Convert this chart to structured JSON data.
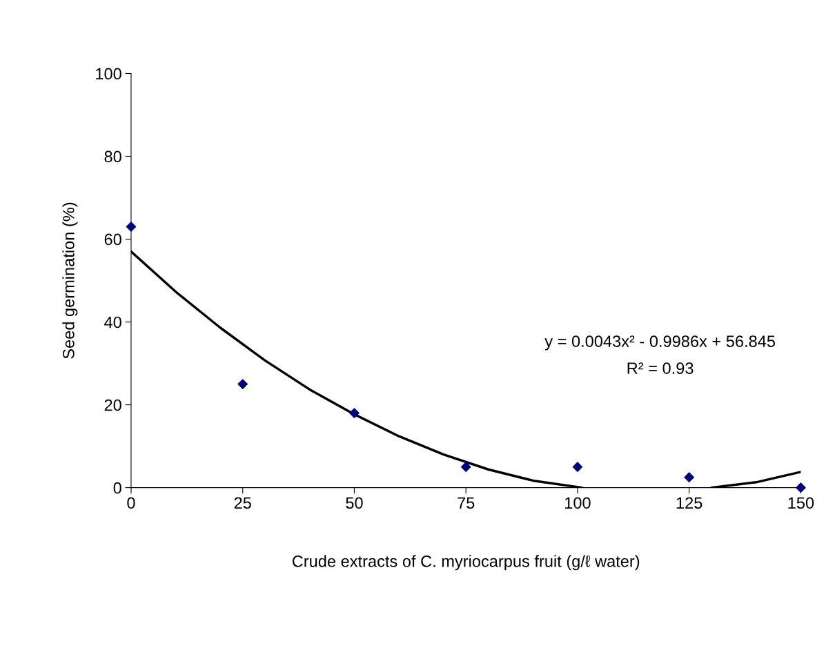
{
  "chart_data": {
    "type": "scatter",
    "xlabel": "Crude extracts of C. myriocarpus fruit (g/ℓ water)",
    "ylabel": "Seed germination (%)",
    "x": [
      0,
      25,
      50,
      75,
      100,
      125,
      150
    ],
    "series": [
      {
        "color": "#000080",
        "marker": "diamond",
        "values": [
          63,
          25,
          18,
          5,
          5,
          2.5,
          0
        ]
      },
      {
        "type": "line",
        "color": "#000000",
        "marker": "none",
        "x": [
          0,
          10,
          20,
          30,
          40,
          50,
          60,
          70,
          80,
          90,
          101,
          115,
          130,
          140,
          150
        ],
        "values": [
          57,
          47.3,
          38.6,
          30.7,
          23.7,
          17.7,
          12.4,
          8,
          4.4,
          1.7,
          0,
          null,
          0,
          1.3,
          3.8
        ]
      }
    ],
    "xlim": [
      0,
      150
    ],
    "xticks": [
      0,
      25,
      50,
      75,
      100,
      125,
      150
    ],
    "ylim": [
      0,
      100
    ],
    "yticks": [
      0,
      20,
      40,
      60,
      80,
      100
    ],
    "grid": false,
    "legend": false,
    "annotations": [
      "y = 0.0043x² - 0.9986x + 56.845",
      "R² = 0.93"
    ]
  }
}
